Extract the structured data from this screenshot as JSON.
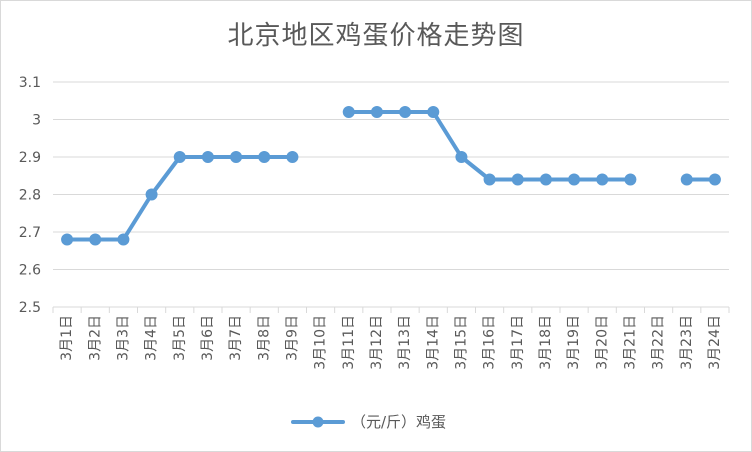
{
  "chart_data": {
    "type": "line",
    "title": "北京地区鸡蛋价格走势图",
    "categories": [
      "3月1日",
      "3月2日",
      "3月3日",
      "3月4日",
      "3月5日",
      "3月6日",
      "3月7日",
      "3月8日",
      "3月9日",
      "3月10日",
      "3月11日",
      "3月12日",
      "3月13日",
      "3月14日",
      "3月15日",
      "3月16日",
      "3月17日",
      "3月18日",
      "3月19日",
      "3月20日",
      "3月21日",
      "3月22日",
      "3月23日",
      "3月24日"
    ],
    "series": [
      {
        "name": "（元/斤）鸡蛋",
        "values": [
          2.68,
          2.68,
          2.68,
          2.8,
          2.9,
          2.9,
          2.9,
          2.9,
          2.9,
          null,
          3.02,
          3.02,
          3.02,
          3.02,
          2.9,
          2.84,
          2.84,
          2.84,
          2.84,
          2.84,
          2.84,
          null,
          2.84,
          2.84
        ],
        "color": "#5b9bd5"
      }
    ],
    "ylim": [
      2.5,
      3.1
    ],
    "yticks": [
      "2.5",
      "2.6",
      "2.7",
      "2.8",
      "2.9",
      "3",
      "3.1"
    ],
    "grid": true,
    "legend": "bottom",
    "xlabel": "",
    "ylabel": ""
  }
}
